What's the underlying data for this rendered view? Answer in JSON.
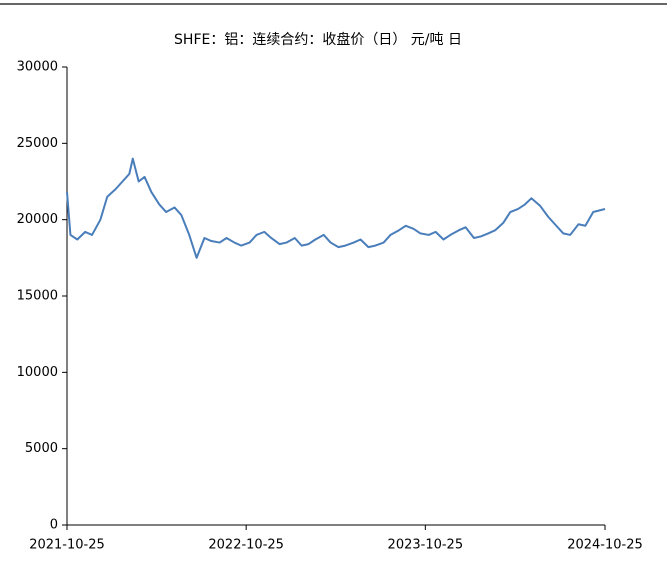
{
  "chart_data": {
    "type": "line",
    "title": "SHFE：铝：连续合约：收盘价（日）  元/吨 日",
    "x": [
      "2021-10-25",
      "2021-11-01",
      "2021-11-15",
      "2021-12-01",
      "2021-12-15",
      "2022-01-01",
      "2022-01-15",
      "2022-02-01",
      "2022-02-15",
      "2022-03-01",
      "2022-03-08",
      "2022-03-20",
      "2022-04-01",
      "2022-04-15",
      "2022-05-01",
      "2022-05-15",
      "2022-06-01",
      "2022-06-15",
      "2022-07-01",
      "2022-07-16",
      "2022-08-01",
      "2022-08-15",
      "2022-09-01",
      "2022-09-15",
      "2022-10-01",
      "2022-10-15",
      "2022-11-01",
      "2022-11-15",
      "2022-12-01",
      "2022-12-15",
      "2023-01-01",
      "2023-01-15",
      "2023-02-01",
      "2023-02-15",
      "2023-03-01",
      "2023-03-15",
      "2023-04-01",
      "2023-04-15",
      "2023-05-01",
      "2023-05-15",
      "2023-06-01",
      "2023-06-15",
      "2023-07-01",
      "2023-07-15",
      "2023-08-01",
      "2023-08-15",
      "2023-09-01",
      "2023-09-15",
      "2023-10-01",
      "2023-10-15",
      "2023-11-01",
      "2023-11-15",
      "2023-12-01",
      "2023-12-15",
      "2024-01-01",
      "2024-01-15",
      "2024-02-01",
      "2024-02-15",
      "2024-03-01",
      "2024-03-15",
      "2024-04-01",
      "2024-04-15",
      "2024-05-01",
      "2024-05-15",
      "2024-05-28",
      "2024-06-15",
      "2024-07-01",
      "2024-07-15",
      "2024-08-01",
      "2024-08-15",
      "2024-09-01",
      "2024-09-15",
      "2024-10-01",
      "2024-10-25"
    ],
    "series": [
      {
        "name": "SHFE：铝：连续合约：收盘价",
        "color": "#4a7ebb",
        "values": [
          21800,
          19000,
          18700,
          19200,
          19000,
          20000,
          21500,
          22000,
          22500,
          23000,
          24000,
          22500,
          22800,
          21800,
          21000,
          20500,
          20800,
          20300,
          19000,
          17500,
          18800,
          18600,
          18500,
          18800,
          18500,
          18300,
          18500,
          19000,
          19200,
          18800,
          18400,
          18500,
          18800,
          18300,
          18400,
          18700,
          19000,
          18500,
          18200,
          18300,
          18500,
          18700,
          18200,
          18300,
          18500,
          19000,
          19300,
          19600,
          19400,
          19100,
          19000,
          19200,
          18700,
          19000,
          19300,
          19500,
          18800,
          18900,
          19100,
          19300,
          19800,
          20500,
          20700,
          21000,
          21400,
          20900,
          20200,
          19700,
          19100,
          19000,
          19700,
          19600,
          20500,
          20700
        ]
      }
    ],
    "xlim": [
      "2021-10-25",
      "2024-10-25"
    ],
    "xticks": [
      "2021-10-25",
      "2022-10-25",
      "2023-10-25",
      "2024-10-25"
    ],
    "ylim": [
      0,
      30000
    ],
    "yticks": [
      0,
      5000,
      10000,
      15000,
      20000,
      25000,
      30000
    ],
    "grid": false
  }
}
